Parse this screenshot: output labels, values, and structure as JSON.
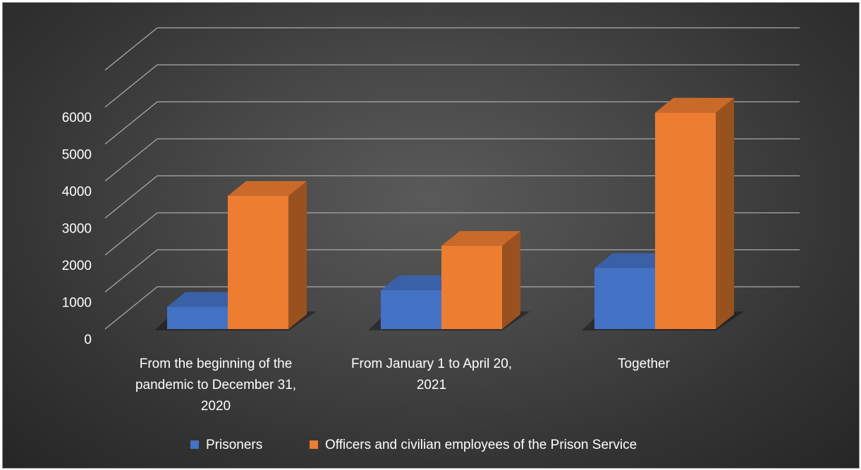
{
  "chart_data": {
    "type": "bar",
    "style": "3d-clustered-column",
    "categories": [
      [
        "From the beginning of the",
        "pandemic to December 31,",
        "2020"
      ],
      [
        "From January 1 to April 20,",
        "2021"
      ],
      [
        "Together"
      ]
    ],
    "series": [
      {
        "name": "Prisoners",
        "color": "#4472C4",
        "values": [
          600,
          1050,
          1650
        ]
      },
      {
        "name": "Officers and civilian employees of the Prison Service",
        "color": "#ED7D31",
        "values": [
          3600,
          2250,
          5850
        ]
      }
    ],
    "ylim": [
      0,
      6000
    ],
    "yticks": [
      0,
      1000,
      2000,
      3000,
      4000,
      5000,
      6000
    ],
    "grid": true,
    "legend_position": "bottom",
    "background": "#3c3c3c"
  }
}
